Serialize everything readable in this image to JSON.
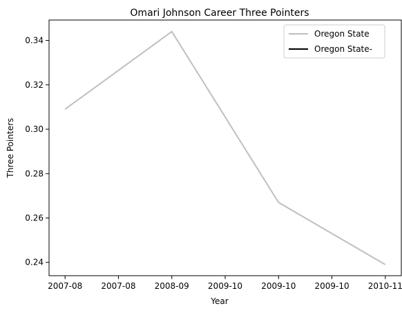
{
  "chart_data": {
    "type": "line",
    "title": "Omari Johnson Career Three Pointers",
    "xlabel": "Year",
    "ylabel": "Three Pointers",
    "x_ticks": [
      "2007-08",
      "2007-08",
      "2008-09",
      "2009-10",
      "2009-10",
      "2009-10",
      "2010-11"
    ],
    "ylim": [
      0.234,
      0.3492
    ],
    "y_ticks": [
      0.24,
      0.26,
      0.28,
      0.3,
      0.32,
      0.34
    ],
    "y_tick_labels": [
      "0.24",
      "0.26",
      "0.28",
      "0.30",
      "0.32",
      "0.34"
    ],
    "grid": false,
    "legend": "top-right",
    "series": [
      {
        "name": "Oregon State",
        "color": "#bfbfbf",
        "x": [
          "2007-08",
          "2008-09",
          "2009-10",
          "2010-11"
        ],
        "x_pos": [
          0,
          2,
          4,
          6
        ],
        "y": [
          0.309,
          0.344,
          0.267,
          0.239
        ]
      },
      {
        "name": "Oregon State-",
        "color": "#000000",
        "x": [],
        "x_pos": [],
        "y": []
      }
    ]
  }
}
